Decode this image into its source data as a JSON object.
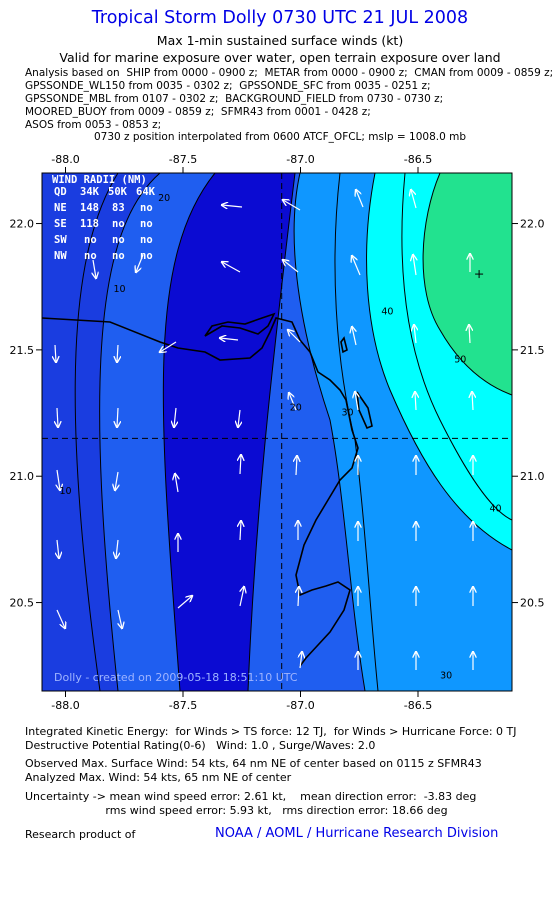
{
  "header": {
    "title": "Tropical Storm Dolly 0730 UTC 21 JUL 2008",
    "subtitle1": "Max 1-min sustained surface winds (kt)",
    "subtitle2": "Valid for marine exposure over water, open terrain exposure over land"
  },
  "analysis_lines": [
    "Analysis based on  SHIP from 0000 - 0900 z;  METAR from 0000 - 0900 z;  CMAN from 0009 - 0859 z;",
    "GPSSONDE_WL150 from 0035 - 0302 z;  GPSSONDE_SFC from 0035 - 0251 z;",
    "GPSSONDE_MBL from 0107 - 0302 z;  BACKGROUND_FIELD from 0730 - 0730 z;",
    "MOORED_BUOY from 0009 - 0859 z;  SFMR43 from 0001 - 0428 z;",
    "ASOS from 0053 - 0853 z;"
  ],
  "position_note": "0730 z position interpolated from 0600 ATCF_OFCL; mslp = 1008.0 mb",
  "map": {
    "lon_labels": [
      "-88.0",
      "-87.5",
      "-87.0",
      "-86.5"
    ],
    "lon_values": [
      -88.0,
      -87.5,
      -87.0,
      -86.5
    ],
    "lat_labels": [
      "22.0",
      "21.5",
      "21.0",
      "20.5"
    ],
    "lat_values": [
      22.0,
      21.5,
      21.0,
      20.5
    ],
    "lon_range": [
      -88.1,
      -86.1
    ],
    "lat_range": [
      20.15,
      22.2
    ],
    "storm_center": {
      "lon": -87.08,
      "lat": 21.15
    },
    "max_wind_marker": {
      "lon": -86.24,
      "lat": 21.8
    },
    "contour_labels": [
      {
        "text": "20",
        "lon": -87.58,
        "lat": 22.09
      },
      {
        "text": "10",
        "lon": -87.77,
        "lat": 21.73
      },
      {
        "text": "40",
        "lon": -86.63,
        "lat": 21.64
      },
      {
        "text": "50",
        "lon": -86.32,
        "lat": 21.45
      },
      {
        "text": "20",
        "lon": -87.02,
        "lat": 21.26
      },
      {
        "text": "30",
        "lon": -86.8,
        "lat": 21.24
      },
      {
        "text": "10",
        "lon": -88.0,
        "lat": 20.93
      },
      {
        "text": "40",
        "lon": -86.17,
        "lat": 20.86
      },
      {
        "text": "30",
        "lon": -86.38,
        "lat": 20.2
      }
    ],
    "colors": {
      "band_0_10": "#0b0bd2",
      "band_10_20": "#1a3de0",
      "band_20_30": "#1f5ef0",
      "band_30_40": "#0f97ff",
      "band_40_50": "#00ffff",
      "band_50_plus": "#22e28f",
      "land_outline": "#000000",
      "arrow": "#ffffff"
    },
    "wind_radii": {
      "title": "WIND RADII (NM)",
      "columns": [
        "QD",
        "34K",
        "50K",
        "64K"
      ],
      "rows": [
        [
          "NE",
          "148",
          "83",
          "no"
        ],
        [
          "SE",
          "118",
          "no",
          "no"
        ],
        [
          "SW",
          "no",
          "no",
          "no"
        ],
        [
          "NW",
          "no",
          "no",
          "no"
        ]
      ]
    },
    "credit": "Dolly - created on 2009-05-18 18:51:10 UTC"
  },
  "footer": {
    "ike": "Integrated Kinetic Energy:  for Winds > TS force: 12 TJ,  for Winds > Hurricane Force: 0 TJ",
    "destructive": "Destructive Potential Rating(0-6)   Wind: 1.0 , Surge/Waves: 2.0",
    "observed": "Observed Max. Surface Wind: 54 kts, 64 nm NE of center based on 0115 z SFMR43",
    "analyzed": "Analyzed Max. Wind: 54 kts, 65 nm NE of center",
    "uncertainty1": "Uncertainty -> mean wind speed error: 2.61 kt,    mean direction error:  -3.83 deg",
    "uncertainty2": "                       rms wind speed error: 5.93 kt,   rms direction error: 18.66 deg",
    "research_label": "Research product of",
    "research_org": "NOAA / AOML / Hurricane Research Division"
  }
}
